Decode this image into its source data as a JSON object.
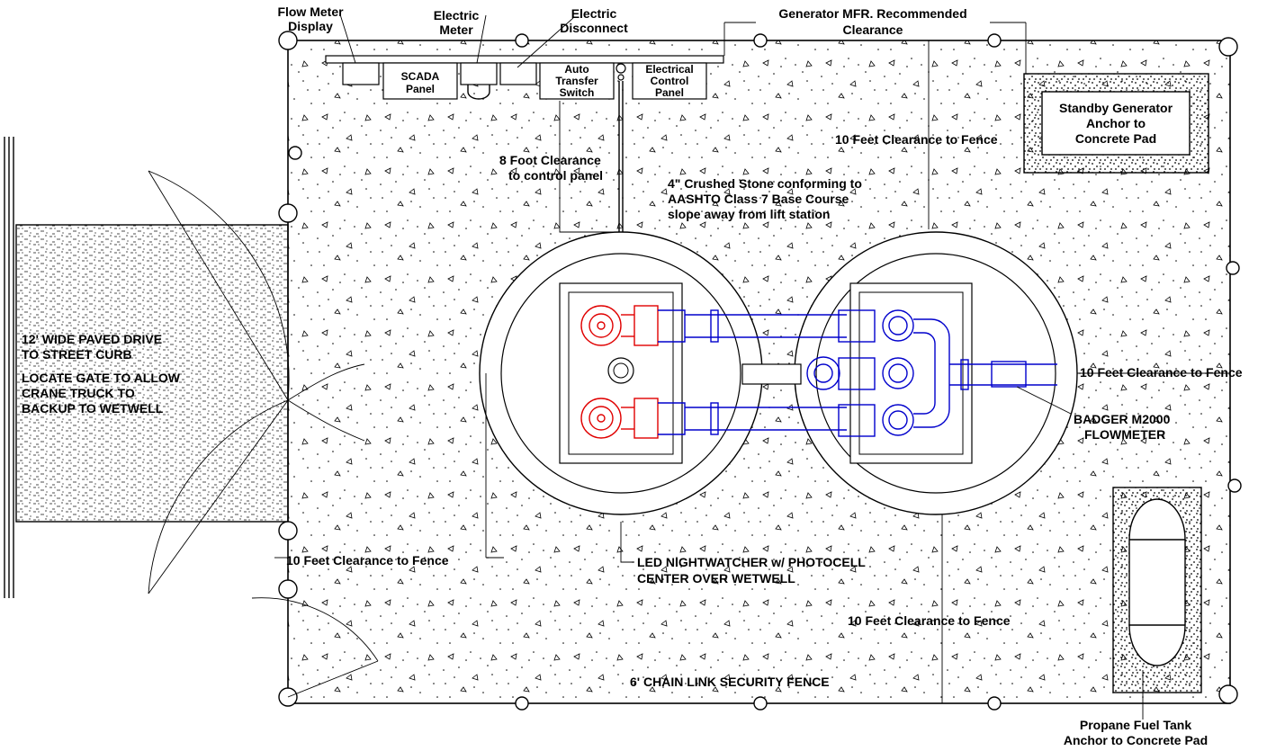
{
  "labels": {
    "flow_meter_display": [
      "Flow Meter",
      "Display"
    ],
    "electric_meter": [
      "Electric",
      "Meter"
    ],
    "electric_disconnect": [
      "Electric",
      "Disconnect"
    ],
    "generator_clearance": [
      "Generator MFR. Recommended",
      "Clearance"
    ],
    "scada_panel": [
      "SCADA",
      "Panel"
    ],
    "auto_transfer_switch": [
      "Auto",
      "Transfer",
      "Switch"
    ],
    "electrical_control_panel": [
      "Electrical",
      "Control",
      "Panel"
    ],
    "standby_generator": [
      "Standby Generator",
      "Anchor to",
      "Concrete Pad"
    ],
    "clearance_top": "10 Feet Clearance to Fence",
    "clearance_right": "10 Feet Clearance to Fence",
    "clearance_left": "10 Feet Clearance to Fence",
    "clearance_bottom": "10 Feet Clearance to Fence",
    "foot_clearance": [
      "8 Foot Clearance",
      "to control panel"
    ],
    "crushed_stone": [
      "4\" Crushed Stone conforming to",
      "AASHTO Class 7 Base Course",
      "slope away from lift station"
    ],
    "paved_drive": [
      "12' WIDE PAVED DRIVE",
      "TO STREET CURB"
    ],
    "locate_gate": [
      "LOCATE GATE TO ALLOW",
      "CRANE TRUCK TO",
      "BACKUP TO WETWELL"
    ],
    "badger": [
      "BADGER M2000",
      "FLOWMETER"
    ],
    "led": [
      "LED NIGHTWATCHER w/ PHOTOCELL",
      "CENTER OVER WETWELL"
    ],
    "fence": "6' CHAIN LINK SECURITY FENCE",
    "propane": [
      "Propane Fuel Tank",
      "Anchor to Concrete Pad"
    ]
  }
}
